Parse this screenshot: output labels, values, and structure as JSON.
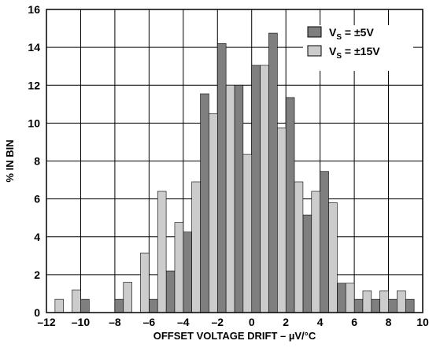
{
  "chart_data": {
    "type": "bar",
    "title": "",
    "xlabel": "OFFSET VOLTAGE DRIFT – µV/°C",
    "ylabel": "% IN BIN",
    "xlim": [
      -12,
      10
    ],
    "ylim": [
      0,
      16
    ],
    "x_ticks": [
      "–12",
      "–10",
      "–8",
      "–6",
      "–4",
      "–2",
      "0",
      "2",
      "4",
      "6",
      "8",
      "10"
    ],
    "y_ticks": [
      "0",
      "2",
      "4",
      "6",
      "8",
      "10",
      "12",
      "14",
      "16"
    ],
    "grid": true,
    "legend_position": "top-right",
    "bin_width": 1,
    "bins": [
      -12,
      -11,
      -10,
      -9,
      -8,
      -7,
      -6,
      -5,
      -4,
      -3,
      -2,
      -1,
      0,
      1,
      2,
      3,
      4,
      5,
      6,
      7,
      8,
      9
    ],
    "series": [
      {
        "name": "±5V",
        "legend_label": {
          "main": "V",
          "sub": "S",
          "rest": " = ±5V"
        },
        "color": "#7f7f7f",
        "values": [
          0,
          0,
          0.7,
          0,
          0.7,
          0,
          0.7,
          2.2,
          4.25,
          11.55,
          14.2,
          12.0,
          13.05,
          14.75,
          11.35,
          5.15,
          7.45,
          1.55,
          0.7,
          0.7,
          0.7,
          0.7
        ]
      },
      {
        "name": "±15V",
        "legend_label": {
          "main": "V",
          "sub": "S",
          "rest": " = ±15V"
        },
        "color": "#cccccc",
        "values": [
          0.7,
          1.2,
          0,
          0,
          1.6,
          3.15,
          6.4,
          4.75,
          6.9,
          10.5,
          12.0,
          8.35,
          13.05,
          9.75,
          6.9,
          6.4,
          5.8,
          1.55,
          1.15,
          1.15,
          1.15,
          0
        ]
      }
    ]
  }
}
